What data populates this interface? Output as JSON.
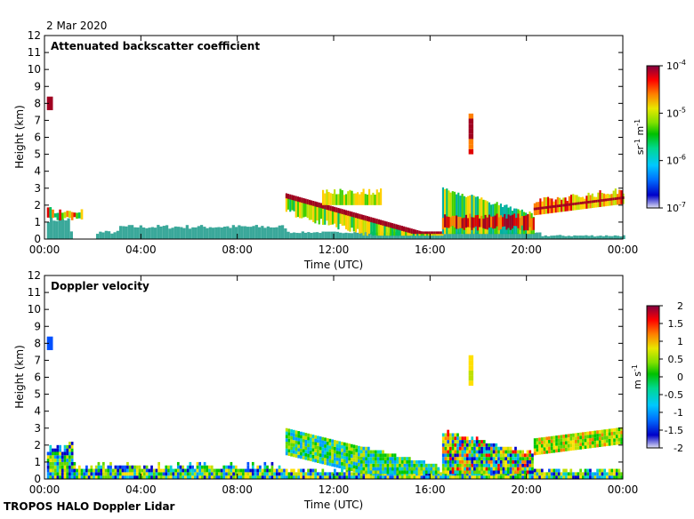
{
  "header": {
    "date": "2 Mar 2020",
    "footer": "TROPOS HALO Doppler Lidar"
  },
  "colors": {
    "background": "#ffffff",
    "axes": "#000000",
    "teal_layer": "#3aa89a",
    "rainbow_scale": [
      "#d8d8f0",
      "#0000c8",
      "#0080ff",
      "#00c8ff",
      "#00e0a0",
      "#00c000",
      "#80e000",
      "#e8e800",
      "#ff8000",
      "#ff0000",
      "#c00000",
      "#800040"
    ]
  },
  "chart_data": [
    {
      "type": "heatmap",
      "title": "Attenuated backscatter coefficient",
      "xlabel": "Time (UTC)",
      "ylabel": "Height (km)",
      "x_ticks": [
        "00:00",
        "04:00",
        "08:00",
        "12:00",
        "16:00",
        "20:00",
        "00:00"
      ],
      "x_range_hours": [
        0,
        24
      ],
      "y_ticks": [
        0,
        1,
        2,
        3,
        4,
        5,
        6,
        7,
        8,
        9,
        10,
        11,
        12
      ],
      "ylim": [
        0,
        12
      ],
      "colorbar": {
        "scale": "log",
        "unit": "sr⁻¹ m⁻¹",
        "unit_base": "sr",
        "unit_exp1": "-1",
        "unit_mid": " m",
        "unit_exp2": "-1",
        "ticks": [
          {
            "base": "10",
            "exp": "-4"
          },
          {
            "base": "10",
            "exp": "-5"
          },
          {
            "base": "10",
            "exp": "-6"
          },
          {
            "base": "10",
            "exp": "-7"
          }
        ],
        "range": [
          1e-07,
          0.0001
        ]
      }
    },
    {
      "type": "heatmap",
      "title": "Doppler velocity",
      "xlabel": "Time (UTC)",
      "ylabel": "Height (km)",
      "x_ticks": [
        "00:00",
        "04:00",
        "08:00",
        "12:00",
        "16:00",
        "20:00",
        "00:00"
      ],
      "x_range_hours": [
        0,
        24
      ],
      "y_ticks": [
        0,
        1,
        2,
        3,
        4,
        5,
        6,
        7,
        8,
        9,
        10,
        11,
        12
      ],
      "ylim": [
        0,
        12
      ],
      "colorbar": {
        "scale": "linear",
        "unit": "m s⁻¹",
        "unit_base": "m s",
        "unit_exp1": "-1",
        "ticks": [
          "2",
          "1.5",
          "1",
          "0.5",
          "0",
          "-0.5",
          "-1",
          "-1.5",
          "-2"
        ],
        "range": [
          -2,
          2
        ]
      }
    }
  ]
}
